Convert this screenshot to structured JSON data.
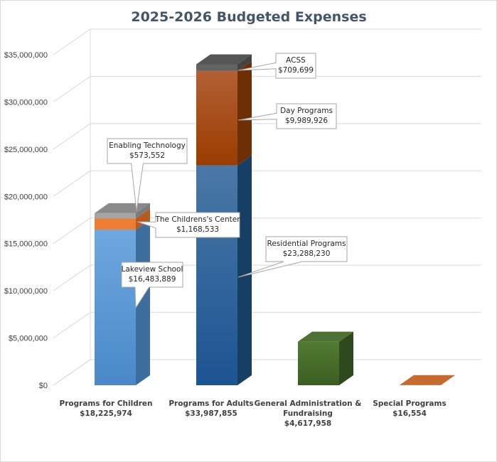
{
  "chart_data": {
    "type": "bar",
    "stacked": true,
    "title": "2025-2026 Budgeted Expenses",
    "xlabel": "",
    "ylabel": "",
    "ylim": [
      0,
      35000000
    ],
    "yticks": [
      0,
      5000000,
      10000000,
      15000000,
      20000000,
      25000000,
      30000000,
      35000000
    ],
    "ytick_labels": [
      "$0",
      "$5,000,000",
      "$10,000,000",
      "$15,000,000",
      "$20,000,000",
      "$25,000,000",
      "$30,000,000",
      "$35,000,000"
    ],
    "grid": true,
    "categories": [
      {
        "name": "Programs for Children",
        "total_label": "$18,225,974"
      },
      {
        "name": "Programs for Adults",
        "total_label": "$33,987,855"
      },
      {
        "name": "General Administration & Fundraising",
        "total_label": "$4,617,958"
      },
      {
        "name": "Special Programs",
        "total_label": "$16,554"
      }
    ],
    "category_label_lines": [
      [
        "Programs for Children",
        "$18,225,974"
      ],
      [
        "Programs for Adults",
        "$33,987,855"
      ],
      [
        "General Administration &",
        "Fundraising",
        "$4,617,958"
      ],
      [
        "Special Programs",
        "$16,554"
      ]
    ],
    "segments": [
      {
        "category_index": 0,
        "name": "Lakeview School",
        "value": 16483889,
        "value_label": "$16,483,889",
        "color": "#5b9bd5"
      },
      {
        "category_index": 0,
        "name": "The Childrens's Center",
        "value": 1168533,
        "value_label": "$1,168,533",
        "color": "#ed7d31"
      },
      {
        "category_index": 0,
        "name": "Enabling Technology",
        "value": 573552,
        "value_label": "$573,552",
        "color": "#a5a5a5"
      },
      {
        "category_index": 1,
        "name": "Residential Programs",
        "value": 23288230,
        "value_label": "$23,288,230",
        "color": "#255e91"
      },
      {
        "category_index": 1,
        "name": "Day Programs",
        "value": 9989926,
        "value_label": "$9,989,926",
        "color": "#9e480e"
      },
      {
        "category_index": 1,
        "name": "ACSS",
        "value": 709699,
        "value_label": "$709,699",
        "color": "#636363"
      },
      {
        "category_index": 2,
        "name": "General Administration & Fundraising",
        "value": 4617958,
        "value_label": "$4,617,958",
        "color": "#43682b"
      },
      {
        "category_index": 3,
        "name": "Special Programs",
        "value": 16554,
        "value_label": "$16,554",
        "color": "#c55a11"
      }
    ],
    "callouts": [
      {
        "segment_index": 0,
        "lines": [
          "Lakeview School",
          "$16,483,889"
        ]
      },
      {
        "segment_index": 1,
        "lines": [
          "The Childrens's Center",
          "$1,168,533"
        ]
      },
      {
        "segment_index": 2,
        "lines": [
          "Enabling Technology",
          "$573,552"
        ]
      },
      {
        "segment_index": 3,
        "lines": [
          "Residential Programs",
          "$23,288,230"
        ]
      },
      {
        "segment_index": 4,
        "lines": [
          "Day Programs",
          "$9,989,926"
        ]
      },
      {
        "segment_index": 5,
        "lines": [
          "ACSS",
          "$709,699"
        ]
      }
    ]
  }
}
